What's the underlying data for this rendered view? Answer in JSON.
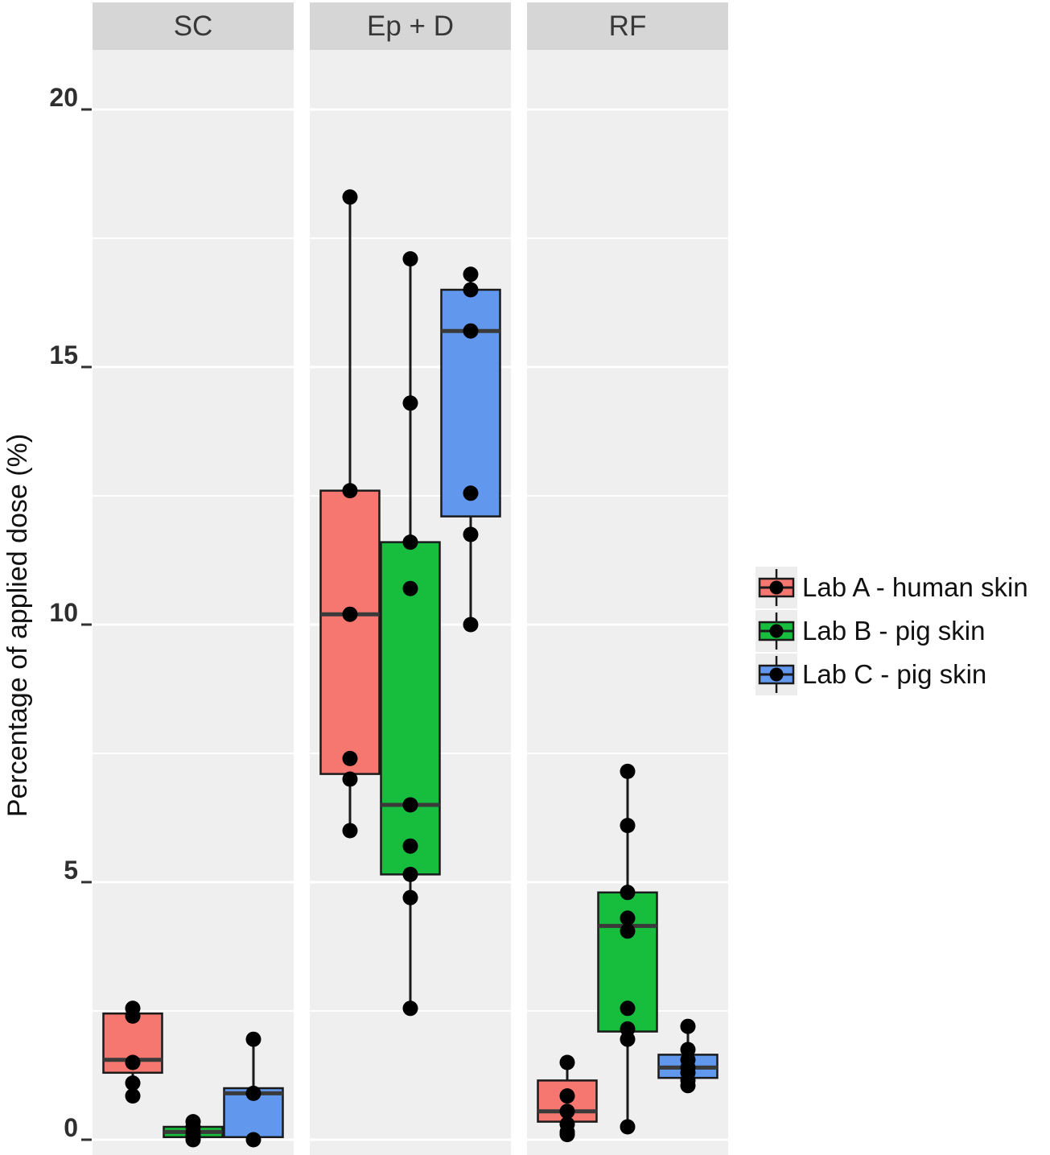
{
  "chart_data": {
    "type": "boxplot",
    "title": "",
    "xlabel": "",
    "ylabel": "Percentage of applied dose (%)",
    "ylim": [
      -0.3,
      21.16
    ],
    "yticks": [
      0,
      5,
      10,
      15,
      20
    ],
    "yticks_minor": [
      2.5,
      7.5,
      12.5,
      17.5
    ],
    "grid": "on",
    "legend_position": "right",
    "facets": [
      "SC",
      "Ep + D",
      "RF"
    ],
    "series": [
      {
        "name": "Lab A - human skin",
        "color": "#F5776F"
      },
      {
        "name": "Lab B - pig skin",
        "color": "#17BE3D"
      },
      {
        "name": "Lab C - pig skin",
        "color": "#6197EC"
      }
    ],
    "boxes": [
      {
        "facet": "SC",
        "series": "Lab A - human skin",
        "q1": 1.3,
        "median": 1.55,
        "q3": 2.45,
        "whisker_low": 0.85,
        "whisker_high": 2.55,
        "points": [
          2.55,
          2.4,
          1.5,
          1.1,
          0.85
        ]
      },
      {
        "facet": "SC",
        "series": "Lab B - pig skin",
        "q1": 0.05,
        "median": 0.15,
        "q3": 0.25,
        "whisker_low": 0.0,
        "whisker_high": 0.35,
        "points": [
          0.35,
          0.25,
          0.15,
          0.1,
          0.05,
          0.0
        ]
      },
      {
        "facet": "SC",
        "series": "Lab C - pig skin",
        "q1": 0.05,
        "median": 0.9,
        "q3": 1.0,
        "whisker_low": 0.0,
        "whisker_high": 1.95,
        "points": [
          1.95,
          0.9,
          0.0
        ]
      },
      {
        "facet": "Ep + D",
        "series": "Lab A - human skin",
        "q1": 7.1,
        "median": 10.2,
        "q3": 12.6,
        "whisker_low": 6.0,
        "whisker_high": 18.3,
        "points": [
          18.3,
          12.6,
          10.2,
          7.4,
          7.0,
          6.0
        ]
      },
      {
        "facet": "Ep + D",
        "series": "Lab B - pig skin",
        "q1": 5.15,
        "median": 6.5,
        "q3": 11.6,
        "whisker_low": 2.55,
        "whisker_high": 17.1,
        "points": [
          17.1,
          14.3,
          11.6,
          10.7,
          6.5,
          5.7,
          5.15,
          4.7,
          2.55
        ]
      },
      {
        "facet": "Ep + D",
        "series": "Lab C - pig skin",
        "q1": 12.1,
        "median": 15.7,
        "q3": 16.5,
        "whisker_low": 10.0,
        "whisker_high": 16.8,
        "points": [
          16.8,
          16.5,
          15.7,
          12.55,
          11.75,
          10.0
        ]
      },
      {
        "facet": "RF",
        "series": "Lab A - human skin",
        "q1": 0.35,
        "median": 0.55,
        "q3": 1.15,
        "whisker_low": 0.1,
        "whisker_high": 1.5,
        "points": [
          1.5,
          0.85,
          0.55,
          0.3,
          0.15,
          0.1
        ]
      },
      {
        "facet": "RF",
        "series": "Lab B - pig skin",
        "q1": 2.1,
        "median": 4.15,
        "q3": 4.8,
        "whisker_low": 0.25,
        "whisker_high": 7.15,
        "points": [
          7.15,
          6.1,
          4.8,
          4.3,
          4.05,
          2.55,
          2.15,
          1.95,
          0.25
        ]
      },
      {
        "facet": "RF",
        "series": "Lab C - pig skin",
        "q1": 1.2,
        "median": 1.4,
        "q3": 1.65,
        "whisker_low": 1.0,
        "whisker_high": 2.2,
        "points": [
          2.2,
          1.75,
          1.55,
          1.4,
          1.3,
          1.15,
          1.05
        ]
      }
    ],
    "colors": {
      "panel_background": "#EFEFEF",
      "strip_background": "#D6D6D6",
      "strip_text": "#383838",
      "gridline": "#FFFFFF",
      "box_border": "#1A1A1A",
      "median_line": "#3A3A3A",
      "whisker": "#1A1A1A",
      "point": "#000000",
      "tick_text": "#2F2F2F",
      "legend_key_background": "#EDEDED"
    }
  }
}
